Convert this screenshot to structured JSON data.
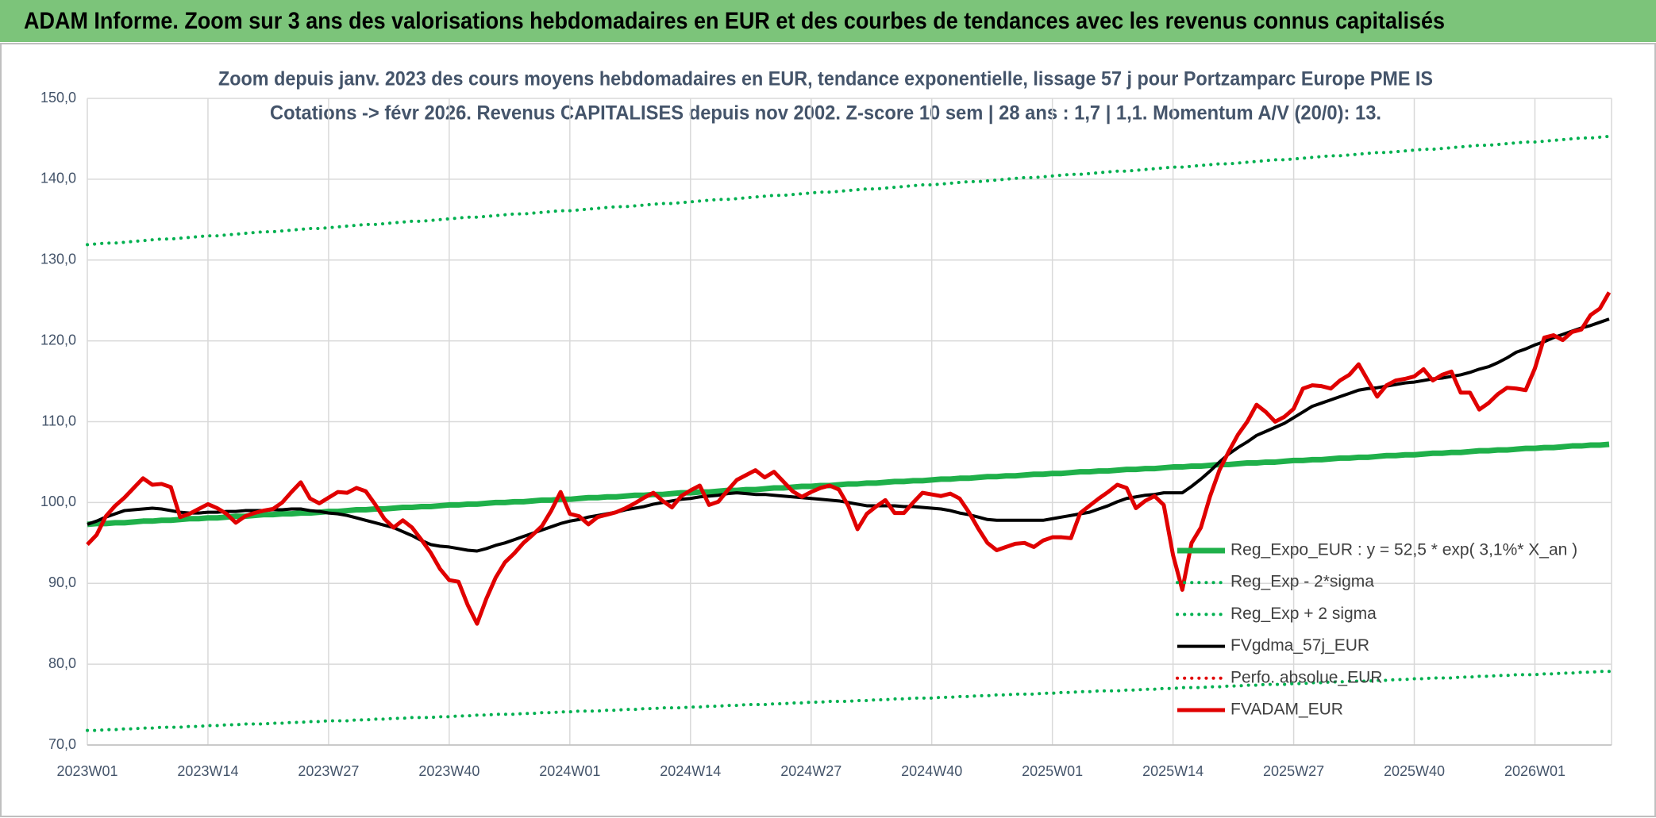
{
  "chart_data": {
    "type": "line",
    "header": "ADAM Informe. Zoom sur 3 ans des valorisations hebdomadaires en EUR et des courbes de tendances avec les revenus connus capitalisés",
    "title": "Zoom depuis janv. 2023 des cours moyens hebdomadaires en EUR, tendance exponentielle, lissage 57 j pour Portzamparc Europe PME IS",
    "subtitle": "Cotations -> févr 2026. Revenus CAPITALISES depuis nov 2002. Z-score 10 sem | 28 ans : 1,7 | 1,1. Momentum A/V (20/0): 13.",
    "categories": [
      "2023W01",
      null,
      null,
      null,
      null,
      null,
      null,
      null,
      null,
      null,
      null,
      null,
      null,
      "2023W14",
      null,
      null,
      null,
      null,
      null,
      null,
      null,
      null,
      null,
      null,
      null,
      null,
      "2023W27",
      null,
      null,
      null,
      null,
      null,
      null,
      null,
      null,
      null,
      null,
      null,
      null,
      "2023W40",
      null,
      null,
      null,
      null,
      null,
      null,
      null,
      null,
      null,
      null,
      null,
      null,
      "2024W01",
      null,
      null,
      null,
      null,
      null,
      null,
      null,
      null,
      null,
      null,
      null,
      null,
      "2024W14",
      null,
      null,
      null,
      null,
      null,
      null,
      null,
      null,
      null,
      null,
      null,
      null,
      "2024W27",
      null,
      null,
      null,
      null,
      null,
      null,
      null,
      null,
      null,
      null,
      null,
      null,
      "2024W40",
      null,
      null,
      null,
      null,
      null,
      null,
      null,
      null,
      null,
      null,
      null,
      null,
      "2025W01",
      null,
      null,
      null,
      null,
      null,
      null,
      null,
      null,
      null,
      null,
      null,
      null,
      "2025W14",
      null,
      null,
      null,
      null,
      null,
      null,
      null,
      null,
      null,
      null,
      null,
      null,
      "2025W27",
      null,
      null,
      null,
      null,
      null,
      null,
      null,
      null,
      null,
      null,
      null,
      null,
      "2025W40",
      null,
      null,
      null,
      null,
      null,
      null,
      null,
      null,
      null,
      null,
      null,
      null,
      "2026W01",
      null,
      null,
      null,
      null,
      null,
      null,
      null,
      null
    ],
    "ylim": [
      70,
      150
    ],
    "yticks": [
      {
        "value": 70,
        "label": "70,0"
      },
      {
        "value": 80,
        "label": "80,0"
      },
      {
        "value": 90,
        "label": "90,0"
      },
      {
        "value": 100,
        "label": "100,0"
      },
      {
        "value": 110,
        "label": "110,0"
      },
      {
        "value": 120,
        "label": "120,0"
      },
      {
        "value": 130,
        "label": "130,0"
      },
      {
        "value": 140,
        "label": "140,0"
      },
      {
        "value": 150,
        "label": "150,0"
      }
    ],
    "grid": true,
    "legend": "right",
    "series": [
      {
        "name": "Reg_Expo_EUR : y = 52,5 * exp( 3,1%*  X_an )",
        "color": "#1fb04a",
        "style": "solid",
        "values": [
          97.3,
          97.4,
          97.4,
          97.5,
          97.5,
          97.6,
          97.7,
          97.7,
          97.8,
          97.8,
          97.9,
          98.0,
          98.0,
          98.1,
          98.1,
          98.2,
          98.3,
          98.3,
          98.4,
          98.5,
          98.5,
          98.6,
          98.6,
          98.7,
          98.7,
          98.8,
          98.9,
          98.9,
          99.0,
          99.1,
          99.1,
          99.2,
          99.2,
          99.3,
          99.4,
          99.4,
          99.5,
          99.5,
          99.6,
          99.7,
          99.7,
          99.8,
          99.8,
          99.9,
          100.0,
          100.0,
          100.1,
          100.1,
          100.2,
          100.3,
          100.3,
          100.4,
          100.4,
          100.5,
          100.6,
          100.6,
          100.7,
          100.7,
          100.8,
          100.9,
          100.9,
          101.0,
          101.0,
          101.1,
          101.2,
          101.2,
          101.3,
          101.3,
          101.4,
          101.5,
          101.5,
          101.6,
          101.6,
          101.7,
          101.8,
          101.8,
          101.9,
          102.0,
          102.0,
          102.1,
          102.1,
          102.2,
          102.3,
          102.3,
          102.4,
          102.4,
          102.5,
          102.6,
          102.6,
          102.7,
          102.7,
          102.8,
          102.9,
          102.9,
          103.0,
          103.0,
          103.1,
          103.2,
          103.2,
          103.3,
          103.3,
          103.4,
          103.5,
          103.5,
          103.6,
          103.6,
          103.7,
          103.8,
          103.8,
          103.9,
          103.9,
          104.0,
          104.1,
          104.1,
          104.2,
          104.2,
          104.3,
          104.4,
          104.4,
          104.5,
          104.5,
          104.6,
          104.7,
          104.7,
          104.8,
          104.9,
          104.9,
          105.0,
          105.0,
          105.1,
          105.2,
          105.2,
          105.3,
          105.3,
          105.4,
          105.5,
          105.5,
          105.6,
          105.6,
          105.7,
          105.8,
          105.8,
          105.9,
          105.9,
          106.0,
          106.1,
          106.1,
          106.2,
          106.2,
          106.3,
          106.4,
          106.4,
          106.5,
          106.5,
          106.6,
          106.7,
          106.7,
          106.8,
          106.8,
          106.9,
          107.0,
          107.0,
          107.1,
          107.1,
          107.2
        ]
      },
      {
        "name": "Reg_Exp - 2*sigma",
        "color": "#00b050",
        "style": "dotted",
        "values": [
          71.8,
          71.8,
          71.9,
          71.9,
          72.0,
          72.0,
          72.1,
          72.1,
          72.2,
          72.2,
          72.2,
          72.3,
          72.3,
          72.4,
          72.4,
          72.5,
          72.5,
          72.6,
          72.6,
          72.6,
          72.7,
          72.7,
          72.8,
          72.8,
          72.9,
          72.9,
          73.0,
          73.0,
          73.0,
          73.1,
          73.1,
          73.2,
          73.2,
          73.3,
          73.3,
          73.4,
          73.4,
          73.4,
          73.5,
          73.5,
          73.6,
          73.6,
          73.7,
          73.7,
          73.8,
          73.8,
          73.8,
          73.9,
          73.9,
          74.0,
          74.0,
          74.1,
          74.1,
          74.2,
          74.2,
          74.2,
          74.3,
          74.3,
          74.4,
          74.4,
          74.5,
          74.5,
          74.6,
          74.6,
          74.6,
          74.7,
          74.7,
          74.8,
          74.8,
          74.9,
          74.9,
          75.0,
          75.0,
          75.0,
          75.1,
          75.1,
          75.2,
          75.2,
          75.3,
          75.3,
          75.4,
          75.4,
          75.4,
          75.5,
          75.5,
          75.6,
          75.6,
          75.7,
          75.7,
          75.8,
          75.8,
          75.8,
          75.9,
          75.9,
          76.0,
          76.0,
          76.1,
          76.1,
          76.2,
          76.2,
          76.3,
          76.3,
          76.3,
          76.4,
          76.4,
          76.5,
          76.5,
          76.6,
          76.6,
          76.7,
          76.7,
          76.7,
          76.8,
          76.8,
          76.9,
          76.9,
          77.0,
          77.0,
          77.1,
          77.1,
          77.1,
          77.2,
          77.2,
          77.3,
          77.3,
          77.4,
          77.4,
          77.5,
          77.5,
          77.5,
          77.6,
          77.6,
          77.7,
          77.7,
          77.8,
          77.8,
          77.9,
          77.9,
          77.9,
          78.0,
          78.0,
          78.1,
          78.1,
          78.2,
          78.2,
          78.3,
          78.3,
          78.3,
          78.4,
          78.4,
          78.5,
          78.5,
          78.6,
          78.6,
          78.7,
          78.7,
          78.7,
          78.8,
          78.8,
          78.9,
          78.9,
          79.0,
          79.0,
          79.1,
          79.1
        ]
      },
      {
        "name": "Reg_Exp + 2 sigma",
        "color": "#00b050",
        "style": "dotted",
        "values": [
          131.9,
          132.0,
          132.1,
          132.1,
          132.2,
          132.3,
          132.4,
          132.5,
          132.6,
          132.6,
          132.7,
          132.8,
          132.9,
          133.0,
          133.0,
          133.1,
          133.2,
          133.3,
          133.4,
          133.5,
          133.5,
          133.6,
          133.7,
          133.8,
          133.9,
          133.9,
          134.0,
          134.1,
          134.2,
          134.3,
          134.4,
          134.4,
          134.5,
          134.6,
          134.7,
          134.8,
          134.8,
          134.9,
          135.0,
          135.1,
          135.2,
          135.3,
          135.3,
          135.4,
          135.5,
          135.6,
          135.7,
          135.7,
          135.8,
          135.9,
          136.0,
          136.1,
          136.1,
          136.2,
          136.3,
          136.4,
          136.5,
          136.6,
          136.6,
          136.7,
          136.8,
          136.9,
          137.0,
          137.0,
          137.1,
          137.2,
          137.3,
          137.4,
          137.5,
          137.5,
          137.6,
          137.7,
          137.8,
          137.9,
          138.0,
          138.0,
          138.1,
          138.2,
          138.3,
          138.4,
          138.4,
          138.5,
          138.6,
          138.7,
          138.8,
          138.8,
          138.9,
          139.0,
          139.1,
          139.2,
          139.3,
          139.3,
          139.4,
          139.5,
          139.6,
          139.7,
          139.7,
          139.8,
          139.9,
          140.0,
          140.1,
          140.2,
          140.2,
          140.3,
          140.4,
          140.5,
          140.6,
          140.6,
          140.7,
          140.8,
          140.9,
          141.0,
          141.0,
          141.1,
          141.2,
          141.3,
          141.4,
          141.5,
          141.5,
          141.6,
          141.7,
          141.8,
          141.9,
          141.9,
          142.0,
          142.1,
          142.2,
          142.3,
          142.4,
          142.4,
          142.5,
          142.6,
          142.7,
          142.8,
          142.9,
          142.9,
          143.0,
          143.1,
          143.2,
          143.3,
          143.3,
          143.4,
          143.5,
          143.6,
          143.7,
          143.7,
          143.8,
          143.9,
          144.0,
          144.1,
          144.2,
          144.2,
          144.3,
          144.4,
          144.5,
          144.6,
          144.6,
          144.7,
          144.8,
          144.9,
          145.0,
          145.1,
          145.1,
          145.2,
          145.3
        ]
      },
      {
        "name": "FVgdma_57j_EUR",
        "color": "#000000",
        "style": "solid",
        "values": [
          97.3,
          97.7,
          98.2,
          98.6,
          99.0,
          99.1,
          99.2,
          99.3,
          99.2,
          99.0,
          98.8,
          98.7,
          98.7,
          98.8,
          98.8,
          98.9,
          98.9,
          99.0,
          99.0,
          99.0,
          99.1,
          99.1,
          99.2,
          99.2,
          99.0,
          98.9,
          98.7,
          98.6,
          98.4,
          98.1,
          97.8,
          97.5,
          97.2,
          96.9,
          96.4,
          95.9,
          95.3,
          94.8,
          94.6,
          94.5,
          94.3,
          94.1,
          94.0,
          94.3,
          94.7,
          95.0,
          95.4,
          95.8,
          96.2,
          96.6,
          97.0,
          97.4,
          97.7,
          97.9,
          98.2,
          98.4,
          98.6,
          98.8,
          99.1,
          99.3,
          99.5,
          99.8,
          100.0,
          100.2,
          100.4,
          100.5,
          100.7,
          100.8,
          100.9,
          101.1,
          101.2,
          101.1,
          101.0,
          101.0,
          100.9,
          100.8,
          100.7,
          100.6,
          100.5,
          100.4,
          100.3,
          100.2,
          100.0,
          99.8,
          99.6,
          99.6,
          99.6,
          99.6,
          99.5,
          99.5,
          99.4,
          99.3,
          99.2,
          99.0,
          98.7,
          98.5,
          98.2,
          97.9,
          97.8,
          97.8,
          97.8,
          97.8,
          97.8,
          97.8,
          98.0,
          98.2,
          98.4,
          98.6,
          98.8,
          99.2,
          99.6,
          100.1,
          100.5,
          100.7,
          100.9,
          101.0,
          101.2,
          101.2,
          101.2,
          102.0,
          102.9,
          103.9,
          105.0,
          106.0,
          106.8,
          107.5,
          108.3,
          108.8,
          109.3,
          109.8,
          110.5,
          111.2,
          111.9,
          112.3,
          112.7,
          113.1,
          113.5,
          113.9,
          114.1,
          114.2,
          114.4,
          114.6,
          114.8,
          114.9,
          115.1,
          115.3,
          115.4,
          115.6,
          115.8,
          116.1,
          116.5,
          116.8,
          117.3,
          117.9,
          118.6,
          119.0,
          119.5,
          119.9,
          120.4,
          120.8,
          121.2,
          121.6,
          121.9,
          122.3,
          122.7
        ]
      },
      {
        "name": "Perfo. absolue_EUR",
        "color": "#e00000",
        "style": "dotted"
      },
      {
        "name": "FVADAM_EUR",
        "color": "#e00000",
        "style": "solid",
        "values": [
          94.8,
          96.0,
          98.3,
          99.6,
          100.6,
          101.8,
          103.0,
          102.2,
          102.3,
          101.9,
          98.2,
          98.6,
          99.2,
          99.8,
          99.3,
          98.6,
          97.5,
          98.3,
          98.7,
          99.0,
          99.2,
          100.0,
          101.3,
          102.5,
          100.5,
          99.9,
          100.6,
          101.3,
          101.2,
          101.8,
          101.4,
          99.8,
          98.0,
          96.9,
          97.8,
          96.9,
          95.4,
          93.8,
          91.8,
          90.4,
          90.2,
          87.3,
          85.0,
          88.1,
          90.7,
          92.6,
          93.7,
          95.0,
          96.0,
          97.1,
          99.0,
          101.3,
          98.6,
          98.3,
          97.3,
          98.2,
          98.5,
          98.8,
          99.3,
          99.9,
          100.6,
          101.2,
          100.2,
          99.4,
          100.8,
          101.5,
          102.1,
          99.7,
          100.1,
          101.5,
          102.8,
          103.4,
          104.0,
          103.1,
          103.8,
          102.6,
          101.4,
          100.7,
          101.3,
          101.8,
          102.1,
          101.6,
          99.6,
          96.7,
          98.6,
          99.5,
          100.3,
          98.7,
          98.7,
          100.0,
          101.2,
          101.0,
          100.8,
          101.1,
          100.5,
          98.8,
          96.8,
          95.0,
          94.1,
          94.5,
          94.9,
          95.0,
          94.5,
          95.3,
          95.7,
          95.7,
          95.6,
          98.7,
          99.6,
          100.5,
          101.3,
          102.2,
          101.8,
          99.3,
          100.2,
          100.8,
          99.7,
          93.5,
          89.2,
          95.0,
          96.9,
          100.8,
          104.0,
          106.3,
          108.4,
          110.0,
          112.1,
          111.2,
          110.0,
          110.6,
          111.6,
          114.1,
          114.5,
          114.4,
          114.1,
          115.1,
          115.8,
          117.1,
          115.1,
          113.1,
          114.5,
          115.1,
          115.3,
          115.6,
          116.5,
          115.1,
          115.8,
          116.2,
          113.6,
          113.6,
          111.5,
          112.3,
          113.4,
          114.2,
          114.1,
          113.9,
          116.6,
          120.4,
          120.7,
          120.1,
          121.1,
          121.4,
          123.2,
          124.0,
          126.0
        ]
      }
    ]
  }
}
